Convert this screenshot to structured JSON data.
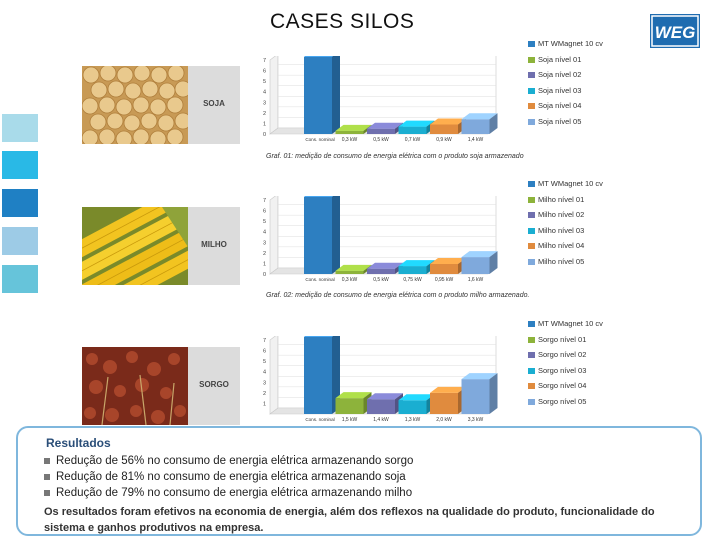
{
  "title": "CASES SILOS",
  "logo_text": "WEG",
  "colors": {
    "accent": "#1f6cb0",
    "side_squares": [
      "#a9dbea",
      "#29b9e6",
      "#1f80c4",
      "#9dcbe6",
      "#66c4da"
    ]
  },
  "crops": [
    {
      "label": "SOJA",
      "caption": "Graf. 01: medição de consumo de energia elétrica com o produto soja armazenado",
      "chart_data": {
        "type": "bar",
        "categories": [
          "Cons. nominal",
          "0,3 kW",
          "0,5 kW",
          "0,7 kW",
          "0,9 kW",
          "1,4 kW"
        ],
        "values": [
          7.3,
          0.3,
          0.5,
          0.7,
          0.9,
          1.4
        ],
        "series_names": [
          "MT WMagnet 10 cv",
          "Soja nível 01",
          "Soja nível 02",
          "Soja nível 03",
          "Soja nível 04",
          "Soja nível 05"
        ],
        "colors": [
          "#2d7fc1",
          "#8db33b",
          "#6f6fae",
          "#1aaed1",
          "#e08b3e",
          "#7fa9dc"
        ],
        "ylim": [
          0,
          7
        ],
        "yticks": [
          "0",
          "1",
          "2",
          "3",
          "4",
          "5",
          "6",
          "7"
        ]
      }
    },
    {
      "label": "MILHO",
      "caption": "Graf. 02: medição de consumo de energia elétrica com o produto milho armazenado.",
      "chart_data": {
        "type": "bar",
        "categories": [
          "Cons. nominal",
          "0,3 kW",
          "0,5 kW",
          "0,75 kW",
          "0,95 kW",
          "1,6 kW"
        ],
        "values": [
          7.3,
          0.3,
          0.5,
          0.75,
          0.95,
          1.6
        ],
        "series_names": [
          "MT WMagnet 10 cv",
          "Milho nível 01",
          "Milho nível 02",
          "Milho nível 03",
          "Milho nível 04",
          "Milho nível 05"
        ],
        "colors": [
          "#2d7fc1",
          "#8db33b",
          "#6f6fae",
          "#1aaed1",
          "#e08b3e",
          "#7fa9dc"
        ],
        "ylim": [
          0,
          7
        ],
        "yticks": [
          "0",
          "1",
          "2",
          "3",
          "4",
          "5",
          "6",
          "7"
        ]
      }
    },
    {
      "label": "SORGO",
      "caption": "",
      "chart_data": {
        "type": "bar",
        "categories": [
          "Cons. nominal",
          "1,5 kW",
          "1,4 kW",
          "1,3 kW",
          "2,0 kW",
          "3,3 kW"
        ],
        "values": [
          7.3,
          1.5,
          1.4,
          1.3,
          2.0,
          3.3
        ],
        "series_names": [
          "MT WMagnet 10 cv",
          "Sorgo nível 01",
          "Sorgo nível 02",
          "Sorgo nível 03",
          "Sorgo nível 04",
          "Sorgo nível 05"
        ],
        "colors": [
          "#2d7fc1",
          "#8db33b",
          "#6f6fae",
          "#1aaed1",
          "#e08b3e",
          "#7fa9dc"
        ],
        "ylim": [
          0,
          7
        ],
        "yticks": [
          "1",
          "2",
          "3",
          "4",
          "5",
          "6",
          "7"
        ]
      }
    }
  ],
  "results": {
    "title": "Resultados",
    "bullets": [
      "Redução de 56% no consumo de energia elétrica armazenando sorgo",
      "Redução de 81% no consumo de energia elétrica armazenando soja",
      "Redução de 79% no consumo de energia elétrica armazenando milho"
    ],
    "conclusion": "Os resultados foram efetivos na economia de energia, além dos reflexos na qualidade do produto, funcionalidade do sistema e ganhos produtivos na empresa."
  }
}
